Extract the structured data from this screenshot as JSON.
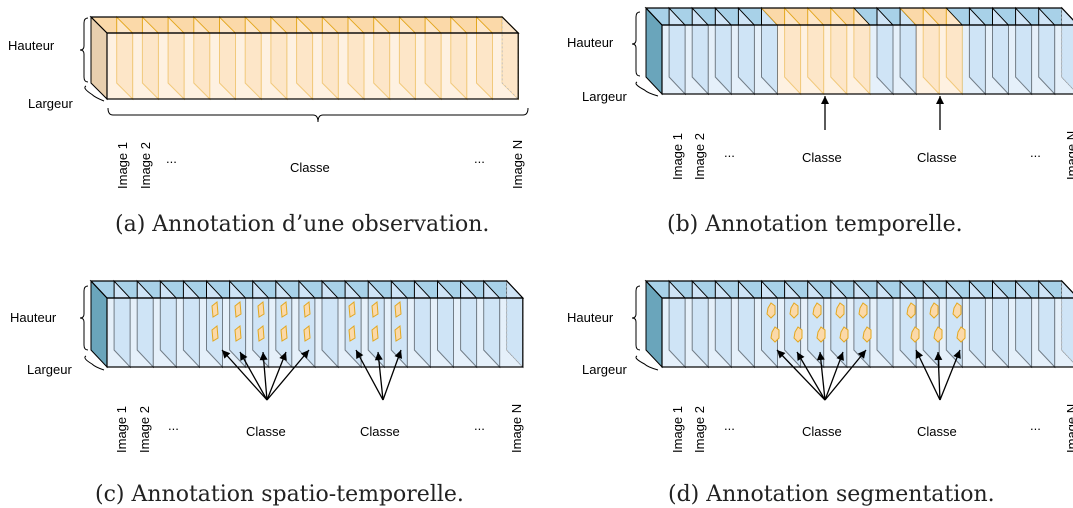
{
  "colors": {
    "blue_front": "#cfe4f6",
    "blue_top": "#a8d1e8",
    "blue_side": "#6aa5bb",
    "orange_front": "#fde6c8",
    "orange_top": "#fbd9a9",
    "orange_stroke": "#e3a71f",
    "tan_side": "#e8cfae"
  },
  "panels": [
    {
      "id": "a",
      "caption": "(a) Annotation d’une observation.",
      "height_label": "Hauteur",
      "width_label": "Largeur",
      "image_first": "Image 1",
      "image_second": "Image 2",
      "image_last": "Image N",
      "ellipsis_left": "...",
      "ellipsis_right": "...",
      "classes": [
        "Classe"
      ]
    },
    {
      "id": "b",
      "caption": "(b) Annotation temporelle.",
      "height_label": "Hauteur",
      "width_label": "Largeur",
      "image_first": "Image 1",
      "image_second": "Image 2",
      "image_last": "Image N",
      "ellipsis_left": "...",
      "ellipsis_right": "...",
      "classes": [
        "Classe",
        "Classe"
      ]
    },
    {
      "id": "c",
      "caption": "(c) Annotation spatio-temporelle.",
      "height_label": "Hauteur",
      "width_label": "Largeur",
      "image_first": "Image 1",
      "image_second": "Image 2",
      "image_last": "Image N",
      "ellipsis_left": "...",
      "ellipsis_right": "...",
      "classes": [
        "Classe",
        "Classe"
      ]
    },
    {
      "id": "d",
      "caption": "(d) Annotation segmentation.",
      "height_label": "Hauteur",
      "width_label": "Largeur",
      "image_first": "Image 1",
      "image_second": "Image 2",
      "image_last": "Image N",
      "ellipsis_left": "...",
      "ellipsis_right": "...",
      "classes": [
        "Classe",
        "Classe"
      ]
    }
  ]
}
